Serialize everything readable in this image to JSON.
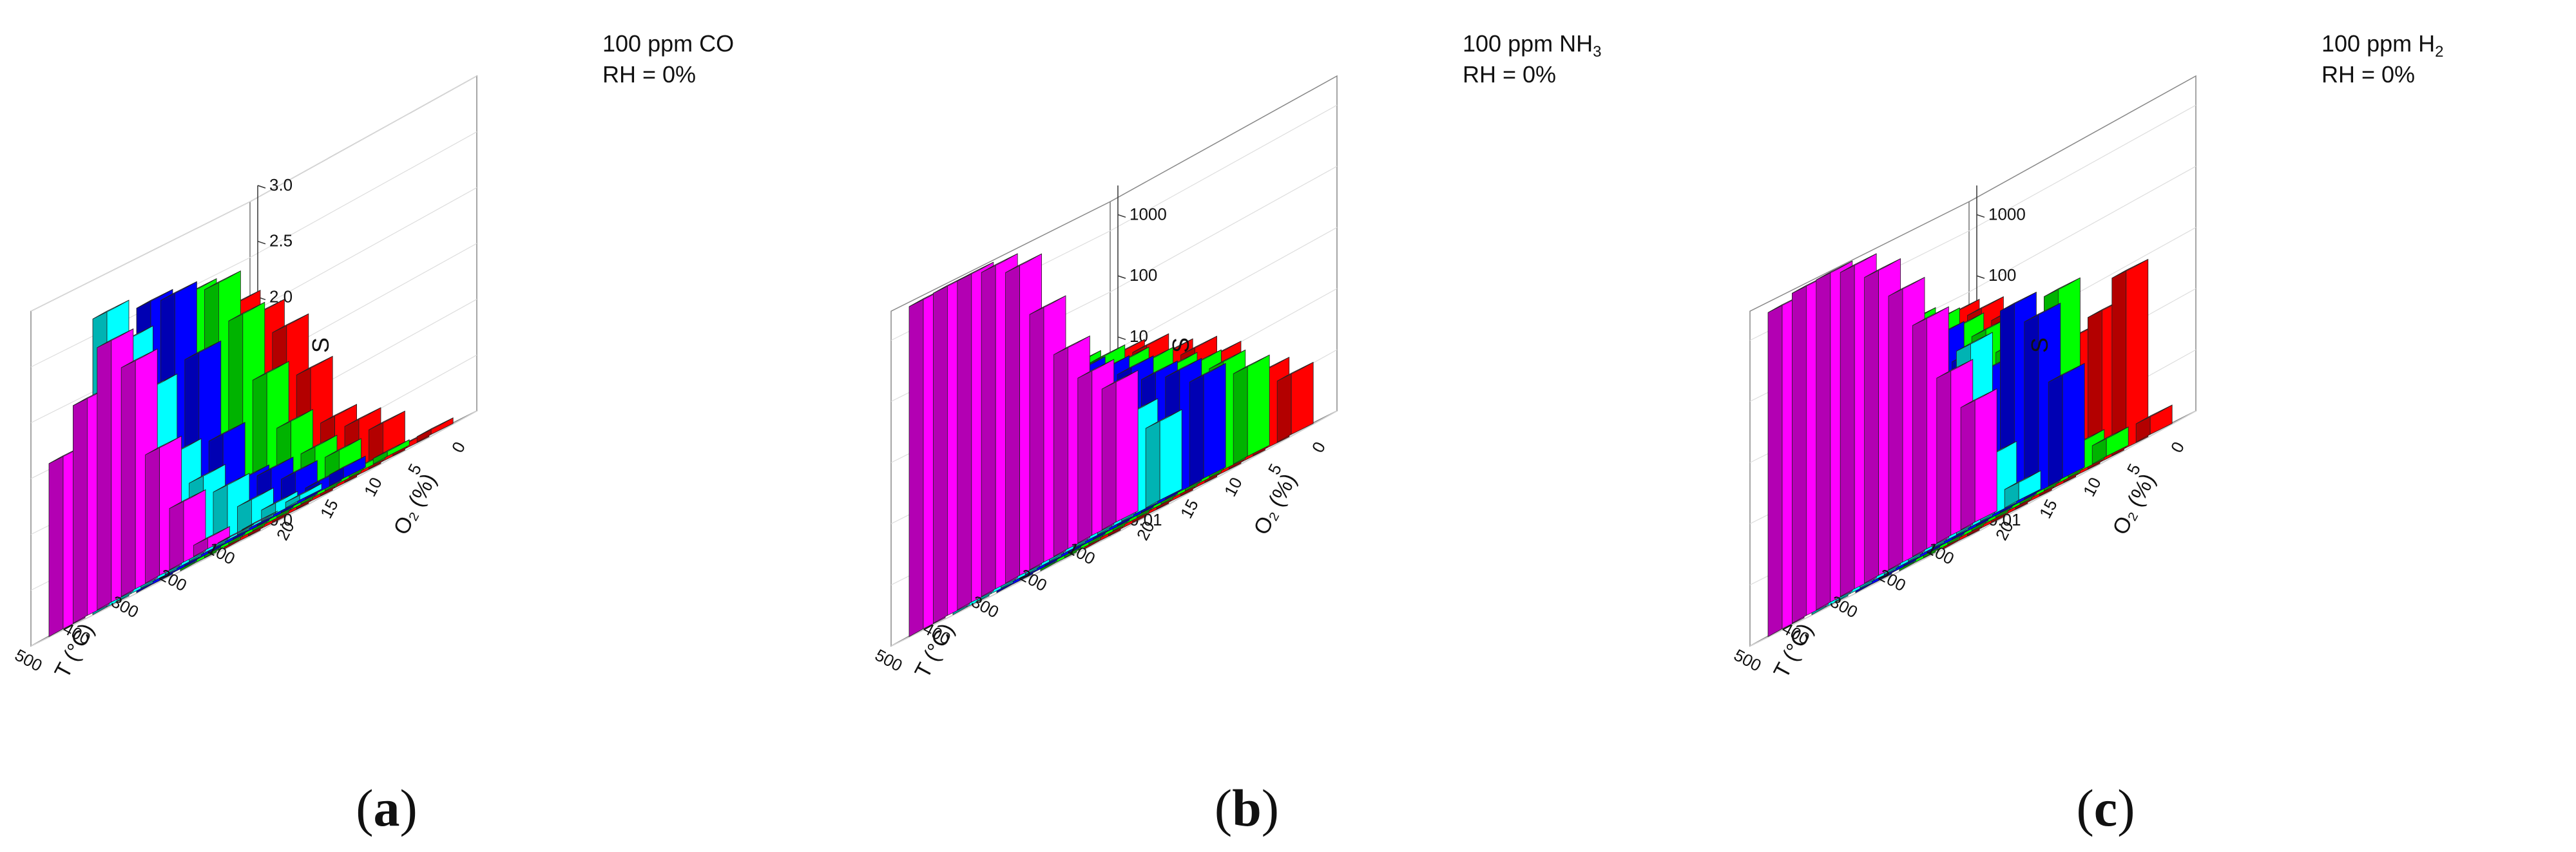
{
  "chart_data": [
    {
      "panel_label": "a",
      "type": "bar3d",
      "annotation_line1": "100 ppm CO",
      "annotation_line2": "RH = 0%",
      "xlabel": "T (°C)",
      "ylabel": "O₂ (%)",
      "zlabel": "S",
      "zscale": "linear",
      "zlim": [
        0,
        3.0
      ],
      "z_ticks": [
        "0.0",
        "0.5",
        "1.0",
        "1.5",
        "2.0",
        "2.5",
        "3.0"
      ],
      "x_ticks": [
        "500",
        "400",
        "300",
        "200",
        "100"
      ],
      "x_values": [
        500,
        450,
        400,
        350,
        300,
        250,
        200,
        150,
        100
      ],
      "y_ticks": [
        "20",
        "15",
        "10",
        "5",
        "0"
      ],
      "series": [
        {
          "name": "20% O₂",
          "color": "#ff0000",
          "values": [
            2.15,
            1.95,
            1.7,
            1.2,
            0.65,
            0.5,
            0.35,
            0.05,
            0.05
          ]
        },
        {
          "name": "15% O₂",
          "color": "#00ff00",
          "values": [
            2.45,
            2.4,
            2.0,
            1.35,
            0.8,
            0.45,
            0.3,
            0.05,
            0.05
          ]
        },
        {
          "name": "10% O₂",
          "color": "#0000ff",
          "values": [
            2.55,
            2.5,
            1.85,
            1.0,
            0.5,
            0.45,
            0.3,
            0.1,
            0.1
          ]
        },
        {
          "name": "5% O₂",
          "color": "#00ffff",
          "values": [
            2.65,
            2.3,
            1.75,
            1.05,
            0.7,
            0.5,
            0.25,
            0.1,
            0.05
          ]
        },
        {
          "name": "0% O₂",
          "color": "#ff00ff",
          "values": [
            1.55,
            1.95,
            2.35,
            2.05,
            1.15,
            0.55,
            0.1,
            0,
            0
          ]
        }
      ]
    },
    {
      "panel_label": "b",
      "type": "bar3d",
      "annotation_line1": "100 ppm NH",
      "annotation_line1_sub": "3",
      "annotation_line2": "RH = 0%",
      "xlabel": "T (°C)",
      "ylabel": "O₂ (%)",
      "zlabel": "S",
      "zscale": "log",
      "zlim": [
        0.01,
        3000
      ],
      "z_ticks": [
        "0.01",
        "0.1",
        "1",
        "10",
        "100",
        "1000"
      ],
      "x_ticks": [
        "500",
        "400",
        "300",
        "200",
        "100"
      ],
      "x_values": [
        500,
        450,
        400,
        350,
        300,
        250,
        200,
        150,
        100
      ],
      "y_ticks": [
        "20",
        "15",
        "10",
        "5",
        "0"
      ],
      "series": [
        {
          "name": "20% O₂",
          "color": "#ff0000",
          "values": [
            6,
            8,
            6,
            3,
            2,
            1,
            0.3,
            0.2,
            0.1
          ]
        },
        {
          "name": "15% O₂",
          "color": "#00ff00",
          "values": [
            10,
            12,
            9,
            5,
            3,
            1.5,
            1,
            0.6,
            0.3
          ]
        },
        {
          "name": "10% O₂",
          "color": "#0000ff",
          "values": [
            25,
            25,
            15,
            8,
            5,
            3,
            1.5,
            1,
            0.5
          ]
        },
        {
          "name": "5% O₂",
          "color": "#00ffff",
          "values": [
            30,
            30,
            20,
            15,
            10,
            3,
            1.5,
            0.5,
            0.2
          ]
        },
        {
          "name": "0% O₂",
          "color": "#ff00ff",
          "values": [
            2500,
            2500,
            2400,
            2000,
            1200,
            150,
            20,
            5,
            2
          ]
        }
      ]
    },
    {
      "panel_label": "c",
      "type": "bar3d",
      "annotation_line1": "100 ppm H",
      "annotation_line1_sub": "2",
      "annotation_line2": "RH = 0%",
      "xlabel": "T (°C)",
      "ylabel": "O₂ (%)",
      "zlabel": "S",
      "zscale": "log",
      "zlim": [
        0.01,
        3000
      ],
      "z_ticks": [
        "0.01",
        "0.1",
        "1",
        "10",
        "100",
        "1000"
      ],
      "x_ticks": [
        "500",
        "400",
        "300",
        "200",
        "100"
      ],
      "x_values": [
        500,
        450,
        400,
        350,
        300,
        250,
        200,
        150,
        100
      ],
      "y_ticks": [
        "20",
        "15",
        "10",
        "5",
        "0"
      ],
      "series": [
        {
          "name": "20% O₂",
          "color": "#ff0000",
          "values": [
            60,
            40,
            20,
            8,
            3,
            2,
            3,
            8,
            0.02
          ]
        },
        {
          "name": "15% O₂",
          "color": "#00ff00",
          "values": [
            100,
            60,
            30,
            15,
            5,
            3,
            15,
            0.03,
            0.02
          ]
        },
        {
          "name": "10% O₂",
          "color": "#0000ff",
          "values": [
            150,
            100,
            60,
            30,
            8,
            3,
            20,
            8,
            0.5
          ]
        },
        {
          "name": "5% O₂",
          "color": "#00ffff",
          "values": [
            300,
            200,
            80,
            15,
            3,
            1,
            10,
            0.1,
            0.02
          ]
        },
        {
          "name": "0% O₂",
          "color": "#ff00ff",
          "values": [
            2000,
            2500,
            2500,
            2000,
            1000,
            300,
            60,
            5,
            1
          ]
        }
      ]
    }
  ]
}
